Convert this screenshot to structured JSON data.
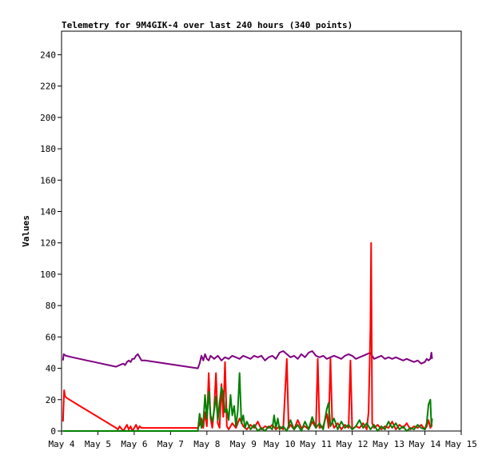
{
  "chart_data": {
    "type": "line",
    "title": "Telemetry for 9M4GIK-4 over last 240 hours (340 points)",
    "ylabel": "Values",
    "xlabel": "",
    "xlim": [
      0,
      11
    ],
    "ylim": [
      0,
      255
    ],
    "x_ticks": [
      {
        "x": 0,
        "label": "May 4"
      },
      {
        "x": 1,
        "label": "May 5"
      },
      {
        "x": 2,
        "label": "May 6"
      },
      {
        "x": 3,
        "label": "May 7"
      },
      {
        "x": 4,
        "label": "May 8"
      },
      {
        "x": 5,
        "label": "May 9"
      },
      {
        "x": 6,
        "label": "May 10"
      },
      {
        "x": 7,
        "label": "May 11"
      },
      {
        "x": 8,
        "label": "May 12"
      },
      {
        "x": 9,
        "label": "May 13"
      },
      {
        "x": 10,
        "label": "May 14"
      },
      {
        "x": 11,
        "label": "May 15"
      }
    ],
    "y_ticks": [
      0,
      20,
      40,
      60,
      80,
      100,
      120,
      140,
      160,
      180,
      200,
      220,
      240
    ],
    "grid": false,
    "legend": "none",
    "series": [
      {
        "color": "#800080",
        "points": [
          [
            0.04,
            45
          ],
          [
            0.06,
            49
          ],
          [
            0.12,
            48
          ],
          [
            0.3,
            47
          ],
          [
            0.5,
            46
          ],
          [
            0.7,
            45
          ],
          [
            0.9,
            44
          ],
          [
            1.1,
            43
          ],
          [
            1.3,
            42
          ],
          [
            1.5,
            41
          ],
          [
            1.6,
            42
          ],
          [
            1.7,
            43
          ],
          [
            1.75,
            42
          ],
          [
            1.8,
            44
          ],
          [
            1.85,
            45
          ],
          [
            1.9,
            44
          ],
          [
            1.95,
            46
          ],
          [
            2.0,
            46
          ],
          [
            2.05,
            48
          ],
          [
            2.1,
            49
          ],
          [
            2.15,
            47
          ],
          [
            2.2,
            45
          ],
          [
            2.3,
            45
          ],
          [
            3.75,
            40
          ],
          [
            3.8,
            43
          ],
          [
            3.85,
            48
          ],
          [
            3.9,
            45
          ],
          [
            3.95,
            49
          ],
          [
            4.0,
            46
          ],
          [
            4.05,
            45
          ],
          [
            4.1,
            48
          ],
          [
            4.2,
            46
          ],
          [
            4.3,
            48
          ],
          [
            4.4,
            45
          ],
          [
            4.5,
            47
          ],
          [
            4.6,
            46
          ],
          [
            4.7,
            48
          ],
          [
            4.8,
            47
          ],
          [
            4.9,
            46
          ],
          [
            5.0,
            48
          ],
          [
            5.1,
            47
          ],
          [
            5.2,
            46
          ],
          [
            5.3,
            48
          ],
          [
            5.4,
            47
          ],
          [
            5.5,
            48
          ],
          [
            5.6,
            45
          ],
          [
            5.7,
            47
          ],
          [
            5.8,
            48
          ],
          [
            5.9,
            46
          ],
          [
            6.0,
            50
          ],
          [
            6.1,
            51
          ],
          [
            6.2,
            49
          ],
          [
            6.3,
            47
          ],
          [
            6.4,
            48
          ],
          [
            6.5,
            46
          ],
          [
            6.6,
            49
          ],
          [
            6.7,
            47
          ],
          [
            6.8,
            50
          ],
          [
            6.9,
            51
          ],
          [
            7.0,
            48
          ],
          [
            7.1,
            47
          ],
          [
            7.2,
            48
          ],
          [
            7.3,
            46
          ],
          [
            7.4,
            47
          ],
          [
            7.5,
            48
          ],
          [
            7.6,
            47
          ],
          [
            7.7,
            46
          ],
          [
            7.8,
            48
          ],
          [
            7.9,
            49
          ],
          [
            8.0,
            48
          ],
          [
            8.1,
            46
          ],
          [
            8.2,
            47
          ],
          [
            8.3,
            48
          ],
          [
            8.4,
            49
          ],
          [
            8.5,
            50
          ],
          [
            8.6,
            46
          ],
          [
            8.7,
            47
          ],
          [
            8.8,
            48
          ],
          [
            8.9,
            46
          ],
          [
            9.0,
            47
          ],
          [
            9.1,
            46
          ],
          [
            9.2,
            47
          ],
          [
            9.3,
            46
          ],
          [
            9.4,
            45
          ],
          [
            9.5,
            46
          ],
          [
            9.6,
            45
          ],
          [
            9.7,
            44
          ],
          [
            9.8,
            45
          ],
          [
            9.9,
            43
          ],
          [
            10.0,
            44
          ],
          [
            10.05,
            46
          ],
          [
            10.1,
            45
          ],
          [
            10.15,
            46
          ],
          [
            10.18,
            50
          ],
          [
            10.2,
            46
          ]
        ]
      },
      {
        "color": "#ff0000",
        "points": [
          [
            0.04,
            6
          ],
          [
            0.07,
            26
          ],
          [
            0.1,
            22
          ],
          [
            0.15,
            21
          ],
          [
            0.5,
            16
          ],
          [
            1.0,
            9
          ],
          [
            1.5,
            2
          ],
          [
            1.55,
            1
          ],
          [
            1.6,
            3
          ],
          [
            1.7,
            0
          ],
          [
            1.75,
            2
          ],
          [
            1.8,
            4
          ],
          [
            1.85,
            1
          ],
          [
            1.9,
            3
          ],
          [
            1.95,
            0
          ],
          [
            2.0,
            2
          ],
          [
            2.05,
            4
          ],
          [
            2.1,
            1
          ],
          [
            2.15,
            3
          ],
          [
            2.2,
            2
          ],
          [
            3.75,
            2
          ],
          [
            3.8,
            4
          ],
          [
            3.85,
            8
          ],
          [
            3.9,
            2
          ],
          [
            3.95,
            12
          ],
          [
            4.0,
            3
          ],
          [
            4.05,
            37
          ],
          [
            4.1,
            8
          ],
          [
            4.15,
            2
          ],
          [
            4.2,
            14
          ],
          [
            4.25,
            37
          ],
          [
            4.3,
            5
          ],
          [
            4.35,
            2
          ],
          [
            4.4,
            30
          ],
          [
            4.45,
            9
          ],
          [
            4.5,
            44
          ],
          [
            4.55,
            3
          ],
          [
            4.6,
            1
          ],
          [
            4.7,
            5
          ],
          [
            4.8,
            2
          ],
          [
            4.9,
            8
          ],
          [
            5.0,
            3
          ],
          [
            5.1,
            1
          ],
          [
            5.2,
            4
          ],
          [
            5.3,
            2
          ],
          [
            5.4,
            6
          ],
          [
            5.5,
            1
          ],
          [
            5.6,
            3
          ],
          [
            5.7,
            2
          ],
          [
            5.8,
            4
          ],
          [
            5.9,
            1
          ],
          [
            6.0,
            3
          ],
          [
            6.1,
            1
          ],
          [
            6.2,
            46
          ],
          [
            6.25,
            2
          ],
          [
            6.3,
            4
          ],
          [
            6.4,
            1
          ],
          [
            6.5,
            7
          ],
          [
            6.6,
            2
          ],
          [
            6.7,
            3
          ],
          [
            6.8,
            1
          ],
          [
            6.9,
            6
          ],
          [
            7.0,
            2
          ],
          [
            7.05,
            46
          ],
          [
            7.1,
            2
          ],
          [
            7.2,
            3
          ],
          [
            7.3,
            11
          ],
          [
            7.35,
            2
          ],
          [
            7.4,
            46
          ],
          [
            7.45,
            6
          ],
          [
            7.5,
            2
          ],
          [
            7.6,
            5
          ],
          [
            7.7,
            1
          ],
          [
            7.8,
            4
          ],
          [
            7.9,
            2
          ],
          [
            7.95,
            45
          ],
          [
            8.0,
            1
          ],
          [
            8.1,
            3
          ],
          [
            8.2,
            2
          ],
          [
            8.3,
            5
          ],
          [
            8.4,
            1
          ],
          [
            8.45,
            12
          ],
          [
            8.5,
            66
          ],
          [
            8.52,
            120
          ],
          [
            8.55,
            5
          ],
          [
            8.6,
            2
          ],
          [
            8.7,
            4
          ],
          [
            8.8,
            1
          ],
          [
            8.9,
            3
          ],
          [
            9.0,
            2
          ],
          [
            9.1,
            6
          ],
          [
            9.2,
            1
          ],
          [
            9.3,
            4
          ],
          [
            9.4,
            2
          ],
          [
            9.5,
            5
          ],
          [
            9.6,
            1
          ],
          [
            9.7,
            3
          ],
          [
            9.8,
            2
          ],
          [
            9.9,
            4
          ],
          [
            10.0,
            1
          ],
          [
            10.05,
            3
          ],
          [
            10.1,
            7
          ],
          [
            10.15,
            2
          ],
          [
            10.2,
            4
          ]
        ]
      },
      {
        "color": "#008000",
        "points": [
          [
            0.04,
            0
          ],
          [
            0.5,
            0
          ],
          [
            0.8,
            0
          ],
          [
            3.75,
            0
          ],
          [
            3.8,
            11
          ],
          [
            3.85,
            2
          ],
          [
            3.9,
            5
          ],
          [
            3.95,
            23
          ],
          [
            4.0,
            8
          ],
          [
            4.05,
            25
          ],
          [
            4.1,
            10
          ],
          [
            4.15,
            6
          ],
          [
            4.2,
            13
          ],
          [
            4.25,
            22
          ],
          [
            4.3,
            7
          ],
          [
            4.35,
            18
          ],
          [
            4.4,
            28
          ],
          [
            4.45,
            24
          ],
          [
            4.5,
            12
          ],
          [
            4.55,
            14
          ],
          [
            4.6,
            7
          ],
          [
            4.65,
            23
          ],
          [
            4.7,
            10
          ],
          [
            4.75,
            16
          ],
          [
            4.8,
            3
          ],
          [
            4.85,
            13
          ],
          [
            4.9,
            37
          ],
          [
            4.95,
            5
          ],
          [
            5.0,
            10
          ],
          [
            5.05,
            2
          ],
          [
            5.1,
            6
          ],
          [
            5.2,
            1
          ],
          [
            5.3,
            4
          ],
          [
            5.4,
            0
          ],
          [
            5.5,
            2
          ],
          [
            5.6,
            0
          ],
          [
            5.7,
            3
          ],
          [
            5.8,
            1
          ],
          [
            5.85,
            10
          ],
          [
            5.9,
            2
          ],
          [
            5.95,
            8
          ],
          [
            6.0,
            1
          ],
          [
            6.1,
            3
          ],
          [
            6.2,
            0
          ],
          [
            6.3,
            7
          ],
          [
            6.4,
            1
          ],
          [
            6.5,
            4
          ],
          [
            6.6,
            0
          ],
          [
            6.7,
            6
          ],
          [
            6.8,
            1
          ],
          [
            6.9,
            9
          ],
          [
            7.0,
            2
          ],
          [
            7.1,
            5
          ],
          [
            7.2,
            1
          ],
          [
            7.3,
            14
          ],
          [
            7.35,
            18
          ],
          [
            7.4,
            3
          ],
          [
            7.5,
            8
          ],
          [
            7.6,
            1
          ],
          [
            7.7,
            6
          ],
          [
            7.8,
            2
          ],
          [
            7.9,
            4
          ],
          [
            8.0,
            1
          ],
          [
            8.1,
            3
          ],
          [
            8.2,
            7
          ],
          [
            8.3,
            2
          ],
          [
            8.4,
            5
          ],
          [
            8.5,
            1
          ],
          [
            8.6,
            4
          ],
          [
            8.7,
            0
          ],
          [
            8.8,
            3
          ],
          [
            8.9,
            1
          ],
          [
            9.0,
            6
          ],
          [
            9.1,
            2
          ],
          [
            9.2,
            5
          ],
          [
            9.3,
            1
          ],
          [
            9.4,
            3
          ],
          [
            9.5,
            0
          ],
          [
            9.6,
            2
          ],
          [
            9.7,
            1
          ],
          [
            9.8,
            4
          ],
          [
            9.9,
            2
          ],
          [
            10.0,
            1
          ],
          [
            10.05,
            5
          ],
          [
            10.1,
            17
          ],
          [
            10.15,
            20
          ],
          [
            10.18,
            3
          ],
          [
            10.2,
            8
          ]
        ]
      }
    ]
  }
}
